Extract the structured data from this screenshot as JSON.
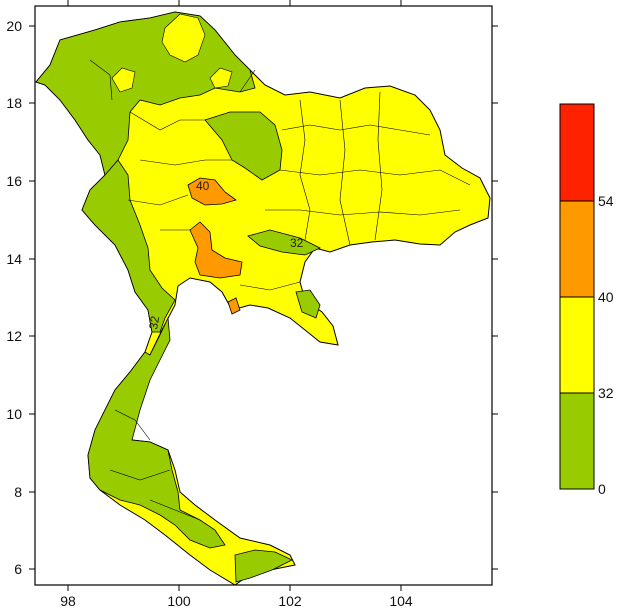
{
  "map": {
    "x_ticks": [
      "98",
      "100",
      "102",
      "104"
    ],
    "y_ticks": [
      "20",
      "18",
      "16",
      "14",
      "12",
      "10",
      "8",
      "6"
    ],
    "contour_labels": [
      "40",
      "32",
      "32"
    ]
  },
  "legend": {
    "bins": [
      {
        "label": "54",
        "color": "#ff2200"
      },
      {
        "label": "40",
        "color": "#ff9900"
      },
      {
        "label": "32",
        "color": "#ffff00"
      },
      {
        "label": "0",
        "color": "#99cc00"
      }
    ],
    "colors": {
      "red": "#ff2200",
      "orange": "#ff9900",
      "yellow": "#ffff00",
      "green": "#99cc00"
    }
  }
}
